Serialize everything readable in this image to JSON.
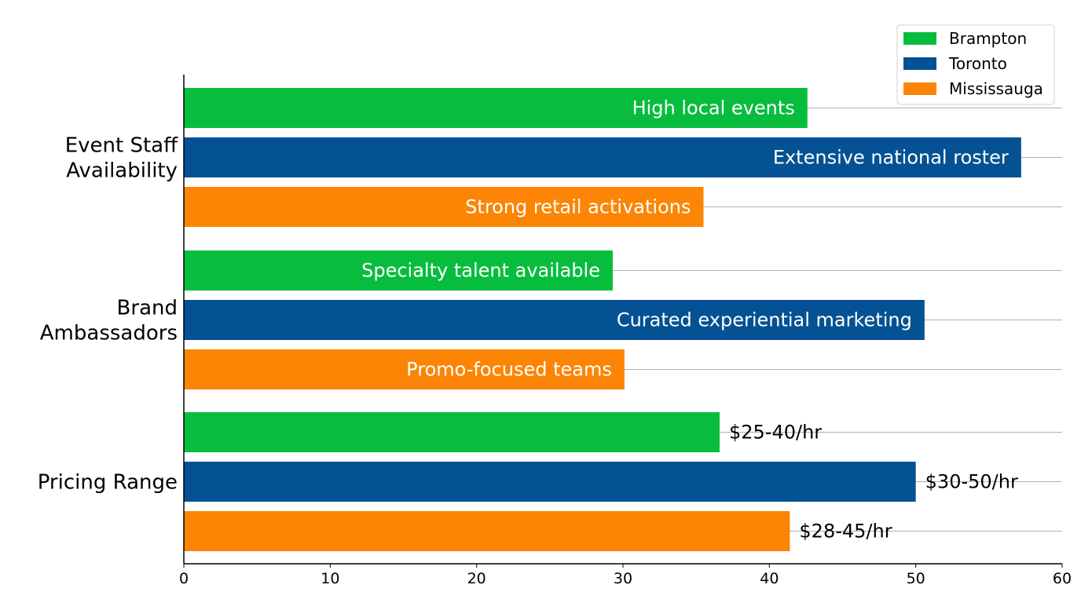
{
  "chart_data": {
    "type": "bar",
    "orientation": "horizontal",
    "categories": [
      "Event Staff Availability",
      "Brand Ambassadors",
      "Pricing Range"
    ],
    "category_lines": [
      [
        "Event Staff",
        "Availability"
      ],
      [
        "Brand",
        "Ambassadors"
      ],
      [
        "Pricing Range"
      ]
    ],
    "series": [
      {
        "name": "Brampton",
        "color": "#08bd3e",
        "values": [
          42.6,
          29.3,
          36.6
        ],
        "labels": [
          "High local events",
          "Specialty talent available",
          "$25-40/hr"
        ]
      },
      {
        "name": "Toronto",
        "color": "#045293",
        "values": [
          57.2,
          50.6,
          50.0
        ],
        "labels": [
          "Extensive national roster",
          "Curated experiential marketing",
          "$30-50/hr"
        ]
      },
      {
        "name": "Mississauga",
        "color": "#fc8505",
        "values": [
          35.5,
          30.1,
          41.4
        ],
        "labels": [
          "Strong retail activations",
          "Promo-focused teams",
          "$28-45/hr"
        ]
      }
    ],
    "label_placement": [
      "inside",
      "inside",
      "outside"
    ],
    "xlim": [
      0,
      60
    ],
    "xticks": [
      0,
      10,
      20,
      30,
      40,
      50,
      60
    ],
    "title": "",
    "xlabel": "",
    "ylabel": "",
    "grid": "horizontal lines at bars",
    "legend": "top-right"
  }
}
